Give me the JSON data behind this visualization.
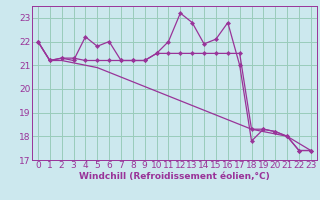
{
  "xlabel": "Windchill (Refroidissement éolien,°C)",
  "background_color": "#cce8ee",
  "grid_color": "#99ccbb",
  "line_color": "#993399",
  "x": [
    0,
    1,
    2,
    3,
    4,
    5,
    6,
    7,
    8,
    9,
    10,
    11,
    12,
    13,
    14,
    15,
    16,
    17,
    18,
    19,
    20,
    21,
    22,
    23
  ],
  "line1": [
    22.0,
    21.2,
    21.3,
    21.2,
    22.2,
    21.8,
    22.0,
    21.2,
    21.2,
    21.2,
    21.5,
    22.0,
    23.2,
    22.8,
    21.9,
    22.1,
    22.8,
    21.0,
    17.8,
    18.3,
    18.2,
    18.0,
    17.4,
    17.4
  ],
  "line2": [
    22.0,
    21.2,
    21.3,
    21.3,
    21.2,
    21.2,
    21.2,
    21.2,
    21.2,
    21.2,
    21.5,
    21.5,
    21.5,
    21.5,
    21.5,
    21.5,
    21.5,
    21.5,
    18.3,
    18.3,
    18.2,
    18.0,
    17.4,
    17.4
  ],
  "line3": [
    22.0,
    21.2,
    21.2,
    21.1,
    21.0,
    20.9,
    20.7,
    20.5,
    20.3,
    20.1,
    19.9,
    19.7,
    19.5,
    19.3,
    19.1,
    18.9,
    18.7,
    18.5,
    18.3,
    18.2,
    18.1,
    18.0,
    17.7,
    17.4
  ],
  "ylim": [
    17,
    23.5
  ],
  "xlim": [
    -0.5,
    23.5
  ],
  "yticks": [
    17,
    18,
    19,
    20,
    21,
    22,
    23
  ],
  "xticks": [
    0,
    1,
    2,
    3,
    4,
    5,
    6,
    7,
    8,
    9,
    10,
    11,
    12,
    13,
    14,
    15,
    16,
    17,
    18,
    19,
    20,
    21,
    22,
    23
  ],
  "tick_fontsize": 6.5,
  "xlabel_fontsize": 6.5,
  "markersize": 2.2,
  "linewidth": 0.9
}
